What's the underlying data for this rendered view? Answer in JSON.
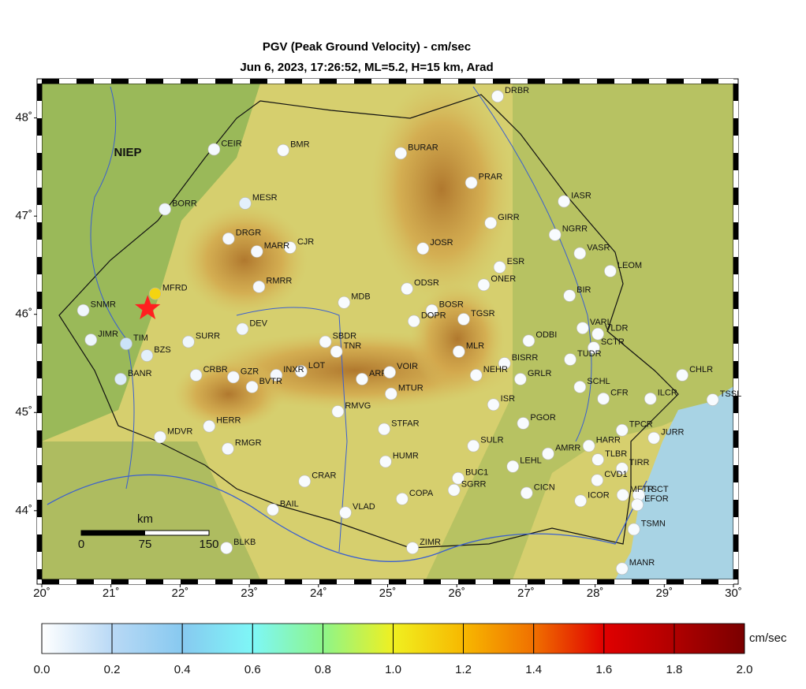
{
  "map": {
    "title": "PGV (Peak Ground Velocity) - cm/sec",
    "subtitle": "Jun 6, 2023, 17:26:52, ML=5.2, H=15 km, Arad",
    "region_label": "NIEP",
    "lon_range": [
      20,
      30.0
    ],
    "lat_range": [
      43.3,
      48.35
    ],
    "lon_ticks": [
      {
        "value": 20,
        "label": "20˚"
      },
      {
        "value": 21,
        "label": "21˚"
      },
      {
        "value": 22,
        "label": "22˚"
      },
      {
        "value": 23,
        "label": "23˚"
      },
      {
        "value": 24,
        "label": "24˚"
      },
      {
        "value": 25,
        "label": "25˚"
      },
      {
        "value": 26,
        "label": "26˚"
      },
      {
        "value": 27,
        "label": "27˚"
      },
      {
        "value": 28,
        "label": "28˚"
      },
      {
        "value": 29,
        "label": "29˚"
      },
      {
        "value": 30,
        "label": "30˚"
      }
    ],
    "lat_ticks": [
      {
        "value": 48,
        "label": "48˚"
      },
      {
        "value": 47,
        "label": "47˚"
      },
      {
        "value": 46,
        "label": "46˚"
      },
      {
        "value": 45,
        "label": "45˚"
      },
      {
        "value": 44,
        "label": "44˚"
      }
    ],
    "epicenter": {
      "lon": 21.53,
      "lat": 46.06,
      "color": "#ff2020"
    },
    "scale_bar": {
      "unit": "km",
      "ticks": [
        0,
        75,
        150
      ]
    },
    "stations": [
      {
        "name": "DRBR",
        "lon": 26.59,
        "lat": 48.22,
        "pgv": 0.02
      },
      {
        "name": "CEIR",
        "lon": 22.49,
        "lat": 47.68,
        "pgv": 0.03
      },
      {
        "name": "BMR",
        "lon": 23.49,
        "lat": 47.67,
        "pgv": 0.02
      },
      {
        "name": "BURAR",
        "lon": 25.19,
        "lat": 47.64,
        "pgv": 0.02
      },
      {
        "name": "PRAR",
        "lon": 26.21,
        "lat": 47.34,
        "pgv": 0.02
      },
      {
        "name": "IASR",
        "lon": 27.55,
        "lat": 47.15,
        "pgv": 0.02
      },
      {
        "name": "BORR",
        "lon": 21.78,
        "lat": 47.07,
        "pgv": 0.04
      },
      {
        "name": "MESR",
        "lon": 22.94,
        "lat": 47.13,
        "pgv": 0.08
      },
      {
        "name": "GIRR",
        "lon": 26.49,
        "lat": 46.93,
        "pgv": 0.02
      },
      {
        "name": "NGRR",
        "lon": 27.42,
        "lat": 46.81,
        "pgv": 0.02
      },
      {
        "name": "DRGR",
        "lon": 22.7,
        "lat": 46.77,
        "pgv": 0.03
      },
      {
        "name": "CJR",
        "lon": 23.59,
        "lat": 46.68,
        "pgv": 0.02
      },
      {
        "name": "MARR",
        "lon": 23.11,
        "lat": 46.64,
        "pgv": 0.03
      },
      {
        "name": "JOSR",
        "lon": 25.51,
        "lat": 46.67,
        "pgv": 0.02
      },
      {
        "name": "VASR",
        "lon": 27.78,
        "lat": 46.62,
        "pgv": 0.02
      },
      {
        "name": "LEOM",
        "lon": 28.22,
        "lat": 46.44,
        "pgv": 0.02
      },
      {
        "name": "ESR",
        "lon": 26.62,
        "lat": 46.48,
        "pgv": 0.02
      },
      {
        "name": "RMRR",
        "lon": 23.14,
        "lat": 46.28,
        "pgv": 0.03
      },
      {
        "name": "ODSR",
        "lon": 25.28,
        "lat": 46.26,
        "pgv": 0.02
      },
      {
        "name": "ONER",
        "lon": 26.39,
        "lat": 46.3,
        "pgv": 0.02
      },
      {
        "name": "BIR",
        "lon": 27.63,
        "lat": 46.19,
        "pgv": 0.02
      },
      {
        "name": "MFRD",
        "lon": 21.64,
        "lat": 46.21,
        "pgv": 1.1
      },
      {
        "name": "MDB",
        "lon": 24.37,
        "lat": 46.12,
        "pgv": 0.02
      },
      {
        "name": "SNMR",
        "lon": 20.6,
        "lat": 46.04,
        "pgv": 0.04
      },
      {
        "name": "BOSR",
        "lon": 25.64,
        "lat": 46.04,
        "pgv": 0.02
      },
      {
        "name": "DOPR",
        "lon": 25.38,
        "lat": 45.93,
        "pgv": 0.02
      },
      {
        "name": "TGSR",
        "lon": 26.1,
        "lat": 45.95,
        "pgv": 0.02
      },
      {
        "name": "DEV",
        "lon": 22.9,
        "lat": 45.85,
        "pgv": 0.04
      },
      {
        "name": "VARL",
        "lon": 27.82,
        "lat": 45.86,
        "pgv": 0.02
      },
      {
        "name": "VLDR",
        "lon": 28.04,
        "lat": 45.8,
        "pgv": 0.02
      },
      {
        "name": "JIMR",
        "lon": 20.71,
        "lat": 45.74,
        "pgv": 0.05
      },
      {
        "name": "TIM",
        "lon": 21.22,
        "lat": 45.7,
        "pgv": 0.15
      },
      {
        "name": "SURR",
        "lon": 22.12,
        "lat": 45.72,
        "pgv": 0.05
      },
      {
        "name": "SBDR",
        "lon": 24.1,
        "lat": 45.72,
        "pgv": 0.02
      },
      {
        "name": "TNR",
        "lon": 24.26,
        "lat": 45.62,
        "pgv": 0.02
      },
      {
        "name": "SCTR",
        "lon": 27.98,
        "lat": 45.66,
        "pgv": 0.02
      },
      {
        "name": "ODBI",
        "lon": 27.04,
        "lat": 45.73,
        "pgv": 0.02
      },
      {
        "name": "BZS",
        "lon": 21.52,
        "lat": 45.58,
        "pgv": 0.08
      },
      {
        "name": "MLR",
        "lon": 26.03,
        "lat": 45.62,
        "pgv": 0.02
      },
      {
        "name": "TUDR",
        "lon": 27.64,
        "lat": 45.54,
        "pgv": 0.02
      },
      {
        "name": "ARR",
        "lon": 24.63,
        "lat": 45.34,
        "pgv": 0.02
      },
      {
        "name": "VOIR",
        "lon": 25.03,
        "lat": 45.41,
        "pgv": 0.02
      },
      {
        "name": "LOT",
        "lon": 23.75,
        "lat": 45.42,
        "pgv": 0.02
      },
      {
        "name": "INXR",
        "lon": 23.39,
        "lat": 45.38,
        "pgv": 0.03
      },
      {
        "name": "BISRR",
        "lon": 26.69,
        "lat": 45.5,
        "pgv": 0.02
      },
      {
        "name": "CRBR",
        "lon": 22.23,
        "lat": 45.38,
        "pgv": 0.04
      },
      {
        "name": "GZR",
        "lon": 22.77,
        "lat": 45.36,
        "pgv": 0.03
      },
      {
        "name": "BANR",
        "lon": 21.14,
        "lat": 45.34,
        "pgv": 0.1
      },
      {
        "name": "NEHR",
        "lon": 26.28,
        "lat": 45.38,
        "pgv": 0.02
      },
      {
        "name": "GRLR",
        "lon": 26.92,
        "lat": 45.34,
        "pgv": 0.02
      },
      {
        "name": "BVTR",
        "lon": 23.04,
        "lat": 45.26,
        "pgv": 0.03
      },
      {
        "name": "MTUR",
        "lon": 25.05,
        "lat": 45.19,
        "pgv": 0.02
      },
      {
        "name": "SCHL",
        "lon": 27.78,
        "lat": 45.26,
        "pgv": 0.02
      },
      {
        "name": "ILCR",
        "lon": 28.8,
        "lat": 45.14,
        "pgv": 0.02
      },
      {
        "name": "CHLR",
        "lon": 29.26,
        "lat": 45.38,
        "pgv": 0.02
      },
      {
        "name": "TSSL",
        "lon": 29.7,
        "lat": 45.13,
        "pgv": 0.02
      },
      {
        "name": "RMVG",
        "lon": 24.28,
        "lat": 45.01,
        "pgv": 0.02
      },
      {
        "name": "ISR",
        "lon": 26.53,
        "lat": 45.08,
        "pgv": 0.02
      },
      {
        "name": "CFR",
        "lon": 28.12,
        "lat": 45.14,
        "pgv": 0.02
      },
      {
        "name": "STFAR",
        "lon": 24.95,
        "lat": 44.83,
        "pgv": 0.02
      },
      {
        "name": "PGOR",
        "lon": 26.96,
        "lat": 44.89,
        "pgv": 0.02
      },
      {
        "name": "TPCR",
        "lon": 28.39,
        "lat": 44.82,
        "pgv": 0.02
      },
      {
        "name": "JURR",
        "lon": 28.85,
        "lat": 44.74,
        "pgv": 0.02
      },
      {
        "name": "MDVR",
        "lon": 21.71,
        "lat": 44.75,
        "pgv": 0.03
      },
      {
        "name": "HERR",
        "lon": 22.42,
        "lat": 44.86,
        "pgv": 0.03
      },
      {
        "name": "RMGR",
        "lon": 22.69,
        "lat": 44.63,
        "pgv": 0.03
      },
      {
        "name": "SULR",
        "lon": 26.24,
        "lat": 44.66,
        "pgv": 0.02
      },
      {
        "name": "HARR",
        "lon": 27.91,
        "lat": 44.66,
        "pgv": 0.02
      },
      {
        "name": "AMRR",
        "lon": 27.32,
        "lat": 44.58,
        "pgv": 0.02
      },
      {
        "name": "TLBR",
        "lon": 28.04,
        "lat": 44.52,
        "pgv": 0.02
      },
      {
        "name": "HUMR",
        "lon": 24.97,
        "lat": 44.5,
        "pgv": 0.02
      },
      {
        "name": "LEHL",
        "lon": 26.81,
        "lat": 44.45,
        "pgv": 0.02
      },
      {
        "name": "TIRR",
        "lon": 28.39,
        "lat": 44.43,
        "pgv": 0.02
      },
      {
        "name": "CRAR",
        "lon": 23.8,
        "lat": 44.3,
        "pgv": 0.02
      },
      {
        "name": "BUC1",
        "lon": 26.02,
        "lat": 44.33,
        "pgv": 0.02
      },
      {
        "name": "CVD1",
        "lon": 28.03,
        "lat": 44.31,
        "pgv": 0.02
      },
      {
        "name": "CICN",
        "lon": 27.01,
        "lat": 44.18,
        "pgv": 0.02
      },
      {
        "name": "SGRR",
        "lon": 25.96,
        "lat": 44.21,
        "pgv": 0.02
      },
      {
        "name": "TSCT",
        "lon": 28.63,
        "lat": 44.16,
        "pgv": 0.02
      },
      {
        "name": "COPA",
        "lon": 25.21,
        "lat": 44.12,
        "pgv": 0.02
      },
      {
        "name": "ICOR",
        "lon": 27.79,
        "lat": 44.1,
        "pgv": 0.02
      },
      {
        "name": "MFTR",
        "lon": 28.4,
        "lat": 44.16,
        "pgv": 0.02
      },
      {
        "name": "EFOR",
        "lon": 28.61,
        "lat": 44.06,
        "pgv": 0.02
      },
      {
        "name": "BAIL",
        "lon": 23.34,
        "lat": 44.01,
        "pgv": 0.02
      },
      {
        "name": "VLAD",
        "lon": 24.39,
        "lat": 43.98,
        "pgv": 0.02
      },
      {
        "name": "TSMN",
        "lon": 28.56,
        "lat": 43.81,
        "pgv": 0.02
      },
      {
        "name": "BLKB",
        "lon": 22.67,
        "lat": 43.62,
        "pgv": 0.02
      },
      {
        "name": "ZIMR",
        "lon": 25.36,
        "lat": 43.62,
        "pgv": 0.02
      },
      {
        "name": "MANR",
        "lon": 28.39,
        "lat": 43.41,
        "pgv": 0.02
      }
    ],
    "colorbar": {
      "unit": "cm/sec",
      "range": [
        0,
        2.0
      ],
      "ticks": [
        {
          "value": 0,
          "label": "0.0"
        },
        0.2,
        0.4,
        0.6,
        0.8,
        {
          "value": 1,
          "label": "1.0"
        },
        1.2,
        1.4,
        1.6,
        1.8,
        {
          "value": 2,
          "label": "2.0"
        }
      ],
      "colors": [
        "#ffffff",
        "#b9d9f5",
        "#87c9f0",
        "#7ef7f7",
        "#8df58a",
        "#f0f020",
        "#f7b800",
        "#f07000",
        "#e00000",
        "#b00000",
        "#7a0000"
      ]
    }
  }
}
